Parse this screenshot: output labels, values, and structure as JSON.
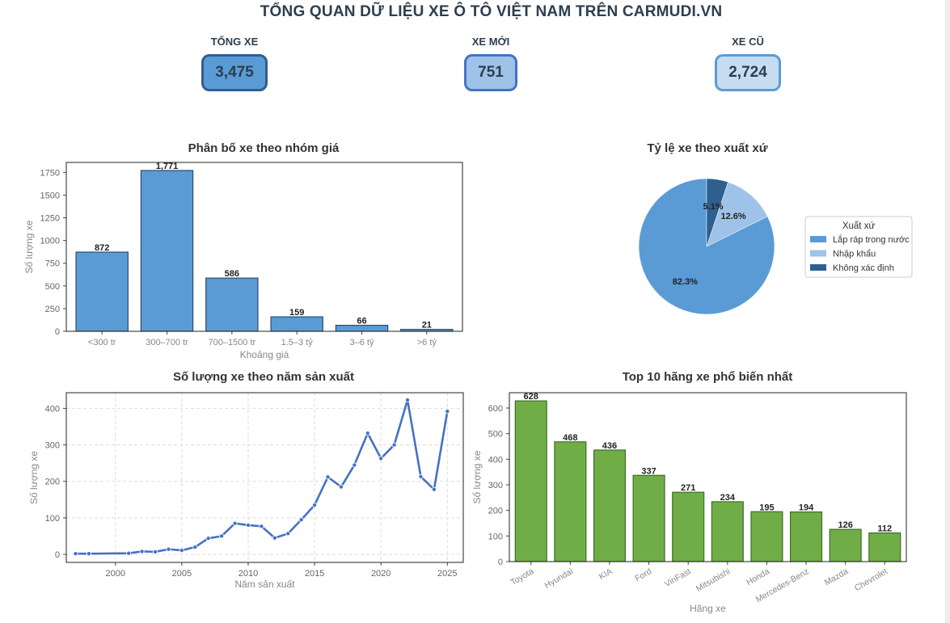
{
  "title": "TỔNG QUAN DỮ LIỆU XE Ô TÔ VIỆT NAM TRÊN CARMUDI.VN",
  "kpis": [
    {
      "label": "TỔNG XE",
      "value": "3,475",
      "bg": "#5b9bd5",
      "border": "#2f5f8a"
    },
    {
      "label": "XE MỚI",
      "value": "751",
      "bg": "#9fc3e8",
      "border": "#4472c4"
    },
    {
      "label": "XE CŨ",
      "value": "2,724",
      "bg": "#c6dcf0",
      "border": "#5b9bd5"
    }
  ],
  "chart_data": [
    {
      "type": "bar",
      "title": "Phân bố xe theo nhóm giá",
      "xlabel": "Khoảng giá",
      "ylabel": "Số lượng xe",
      "categories": [
        "<300 tr",
        "300–700 tr",
        "700–1500 tr",
        "1.5–3 tỷ",
        "3–6 tỷ",
        ">6 tỷ"
      ],
      "values": [
        872,
        1771,
        586,
        159,
        66,
        21
      ],
      "value_labels": [
        "872",
        "1,771",
        "586",
        "159",
        "66",
        "21"
      ],
      "ylim": [
        0,
        1860
      ],
      "yticks": [
        0,
        250,
        500,
        750,
        1000,
        1250,
        1500,
        1750
      ],
      "color": "#5b9bd5",
      "grid": false
    },
    {
      "type": "pie",
      "title": "Tỷ lệ xe theo xuất xứ",
      "legend_title": "Xuất xứ",
      "legend_position": "right",
      "labels": [
        "Lắp ráp trong nước",
        "Nhập khẩu",
        "Không xác định"
      ],
      "values": [
        82.3,
        12.6,
        5.1
      ],
      "value_labels": [
        "82.3%",
        "12.6%",
        "5.1%"
      ],
      "colors": [
        "#5b9bd5",
        "#9fc3e8",
        "#2e5f8f"
      ]
    },
    {
      "type": "line",
      "title": "Số lượng xe theo năm sản xuất",
      "xlabel": "Năm sản xuất",
      "ylabel": "Số lượng xe",
      "x": [
        1997,
        1998,
        2001,
        2002,
        2003,
        2004,
        2005,
        2006,
        2007,
        2008,
        2009,
        2010,
        2011,
        2012,
        2013,
        2014,
        2015,
        2016,
        2017,
        2018,
        2019,
        2020,
        2021,
        2022,
        2023,
        2024,
        2025
      ],
      "y": [
        2,
        2,
        3,
        8,
        7,
        14,
        11,
        20,
        44,
        50,
        85,
        80,
        77,
        45,
        57,
        95,
        135,
        212,
        185,
        245,
        332,
        263,
        300,
        423,
        213,
        178,
        392
      ],
      "xlim": [
        1996.3,
        2026.2
      ],
      "ylim": [
        -22,
        443
      ],
      "xticks": [
        2000,
        2005,
        2010,
        2015,
        2020,
        2025
      ],
      "yticks": [
        0,
        100,
        200,
        300,
        400
      ],
      "color": "#4472c4",
      "grid": true
    },
    {
      "type": "bar",
      "title": "Top 10 hãng xe phổ biến nhất",
      "xlabel": "Hãng xe",
      "ylabel": "Số lượng xe",
      "categories": [
        "Toyota",
        "Hyundai",
        "KIA",
        "Ford",
        "VinFast",
        "Mitsubishi",
        "Honda",
        "Mercedes-Benz",
        "Mazda",
        "Chevrolet"
      ],
      "values": [
        628,
        468,
        436,
        337,
        271,
        234,
        195,
        194,
        126,
        112
      ],
      "ylim": [
        0,
        660
      ],
      "yticks": [
        0,
        100,
        200,
        300,
        400,
        500,
        600
      ],
      "color": "#70ad47",
      "grid": false
    }
  ]
}
